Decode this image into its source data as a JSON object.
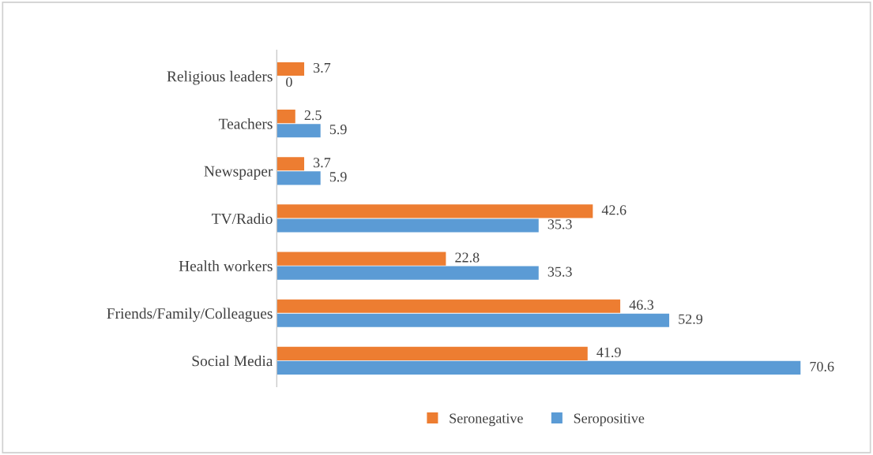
{
  "chart_data": {
    "type": "bar",
    "orientation": "horizontal",
    "categories": [
      "Religious leaders",
      "Teachers",
      "Newspaper",
      "TV/Radio",
      "Health workers",
      "Friends/Family/Colleagues",
      "Social Media"
    ],
    "series": [
      {
        "name": "Seronegative",
        "color": "#ed7d31",
        "values": [
          3.7,
          2.5,
          3.7,
          42.6,
          22.8,
          46.3,
          41.9
        ]
      },
      {
        "name": "Seropositive",
        "color": "#5b9bd5",
        "values": [
          0,
          5.9,
          5.9,
          35.3,
          35.3,
          52.9,
          70.6
        ]
      }
    ],
    "data_labels": true,
    "legend": "bottom",
    "grid": false,
    "tick_labels": "y"
  }
}
